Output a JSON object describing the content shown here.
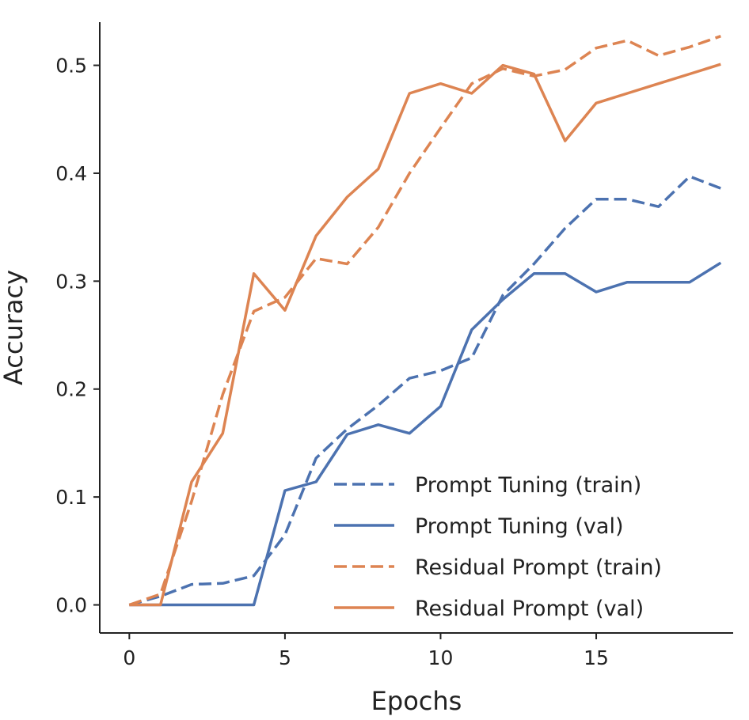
{
  "chart_data": {
    "type": "line",
    "title": "",
    "xlabel": "Epochs",
    "ylabel": "Accuracy",
    "xlim": [
      -0.95,
      19.4
    ],
    "ylim": [
      -0.026,
      0.54
    ],
    "xticks": [
      0,
      5,
      10,
      15
    ],
    "yticks": [
      0.0,
      0.1,
      0.2,
      0.3,
      0.4,
      0.5
    ],
    "xtick_labels": [
      "0",
      "5",
      "10",
      "15"
    ],
    "ytick_labels": [
      "0.0",
      "0.1",
      "0.2",
      "0.3",
      "0.4",
      "0.5"
    ],
    "grid": false,
    "legend_position": "lower-right",
    "x": [
      0,
      1,
      2,
      3,
      4,
      5,
      6,
      7,
      8,
      9,
      10,
      11,
      12,
      13,
      14,
      15,
      16,
      17,
      18,
      19
    ],
    "series": [
      {
        "name": "Prompt Tuning (train)",
        "color": "#4c72b0",
        "style": "dashed",
        "values": [
          0.0,
          0.008,
          0.019,
          0.02,
          0.027,
          0.065,
          0.136,
          0.163,
          0.185,
          0.21,
          0.217,
          0.229,
          0.287,
          0.316,
          0.349,
          0.376,
          0.376,
          0.369,
          0.397,
          0.386
        ]
      },
      {
        "name": "Prompt Tuning (val)",
        "color": "#4c72b0",
        "style": "solid",
        "values": [
          0.0,
          0.0,
          0.0,
          0.0,
          0.0,
          0.106,
          0.114,
          0.158,
          0.167,
          0.159,
          0.184,
          0.255,
          0.283,
          0.307,
          0.307,
          0.29,
          0.299,
          0.299,
          0.299,
          0.317
        ]
      },
      {
        "name": "Residual Prompt (train)",
        "color": "#dd8452",
        "style": "dashed",
        "values": [
          0.0,
          0.01,
          0.096,
          0.195,
          0.272,
          0.285,
          0.321,
          0.316,
          0.35,
          0.4,
          0.442,
          0.483,
          0.497,
          0.49,
          0.496,
          0.516,
          0.523,
          0.509,
          0.517,
          0.527
        ]
      },
      {
        "name": "Residual Prompt (val)",
        "color": "#dd8452",
        "style": "solid",
        "values": [
          0.0,
          0.0,
          0.114,
          0.159,
          0.307,
          0.273,
          0.342,
          0.378,
          0.404,
          0.474,
          0.483,
          0.474,
          0.5,
          0.492,
          0.43,
          0.465,
          0.474,
          0.483,
          0.492,
          0.501
        ]
      }
    ]
  }
}
